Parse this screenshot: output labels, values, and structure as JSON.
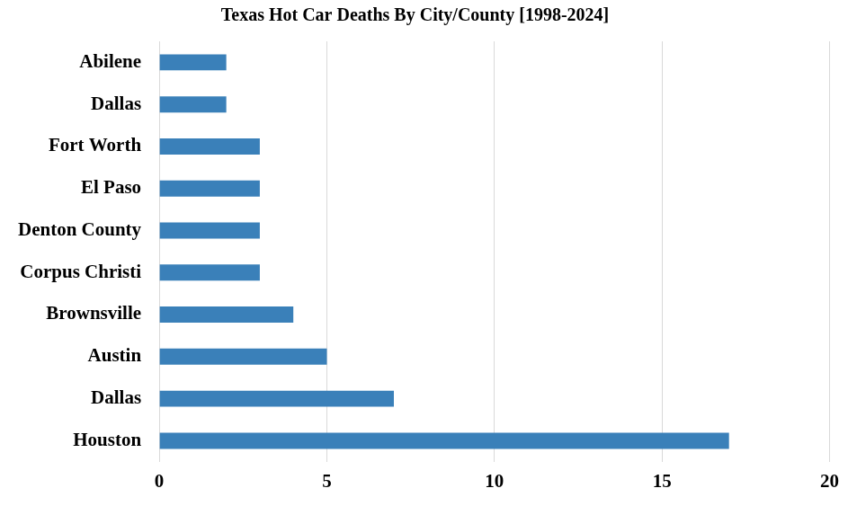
{
  "chart_data": {
    "type": "bar",
    "orientation": "horizontal",
    "title": "Texas Hot Car Deaths By City/County [1998-2024]",
    "categories": [
      "Abilene",
      "Dallas",
      "Fort Worth",
      "El Paso",
      "Denton County",
      "Corpus Christi",
      "Brownsville",
      "Austin",
      "Dallas",
      "Houston"
    ],
    "values": [
      2,
      2,
      3,
      3,
      3,
      3,
      4,
      5,
      7,
      17
    ],
    "color": "#3a80b9",
    "xlim": [
      0,
      20
    ],
    "xticks": [
      0,
      5,
      10,
      15,
      20
    ],
    "grid": true
  }
}
